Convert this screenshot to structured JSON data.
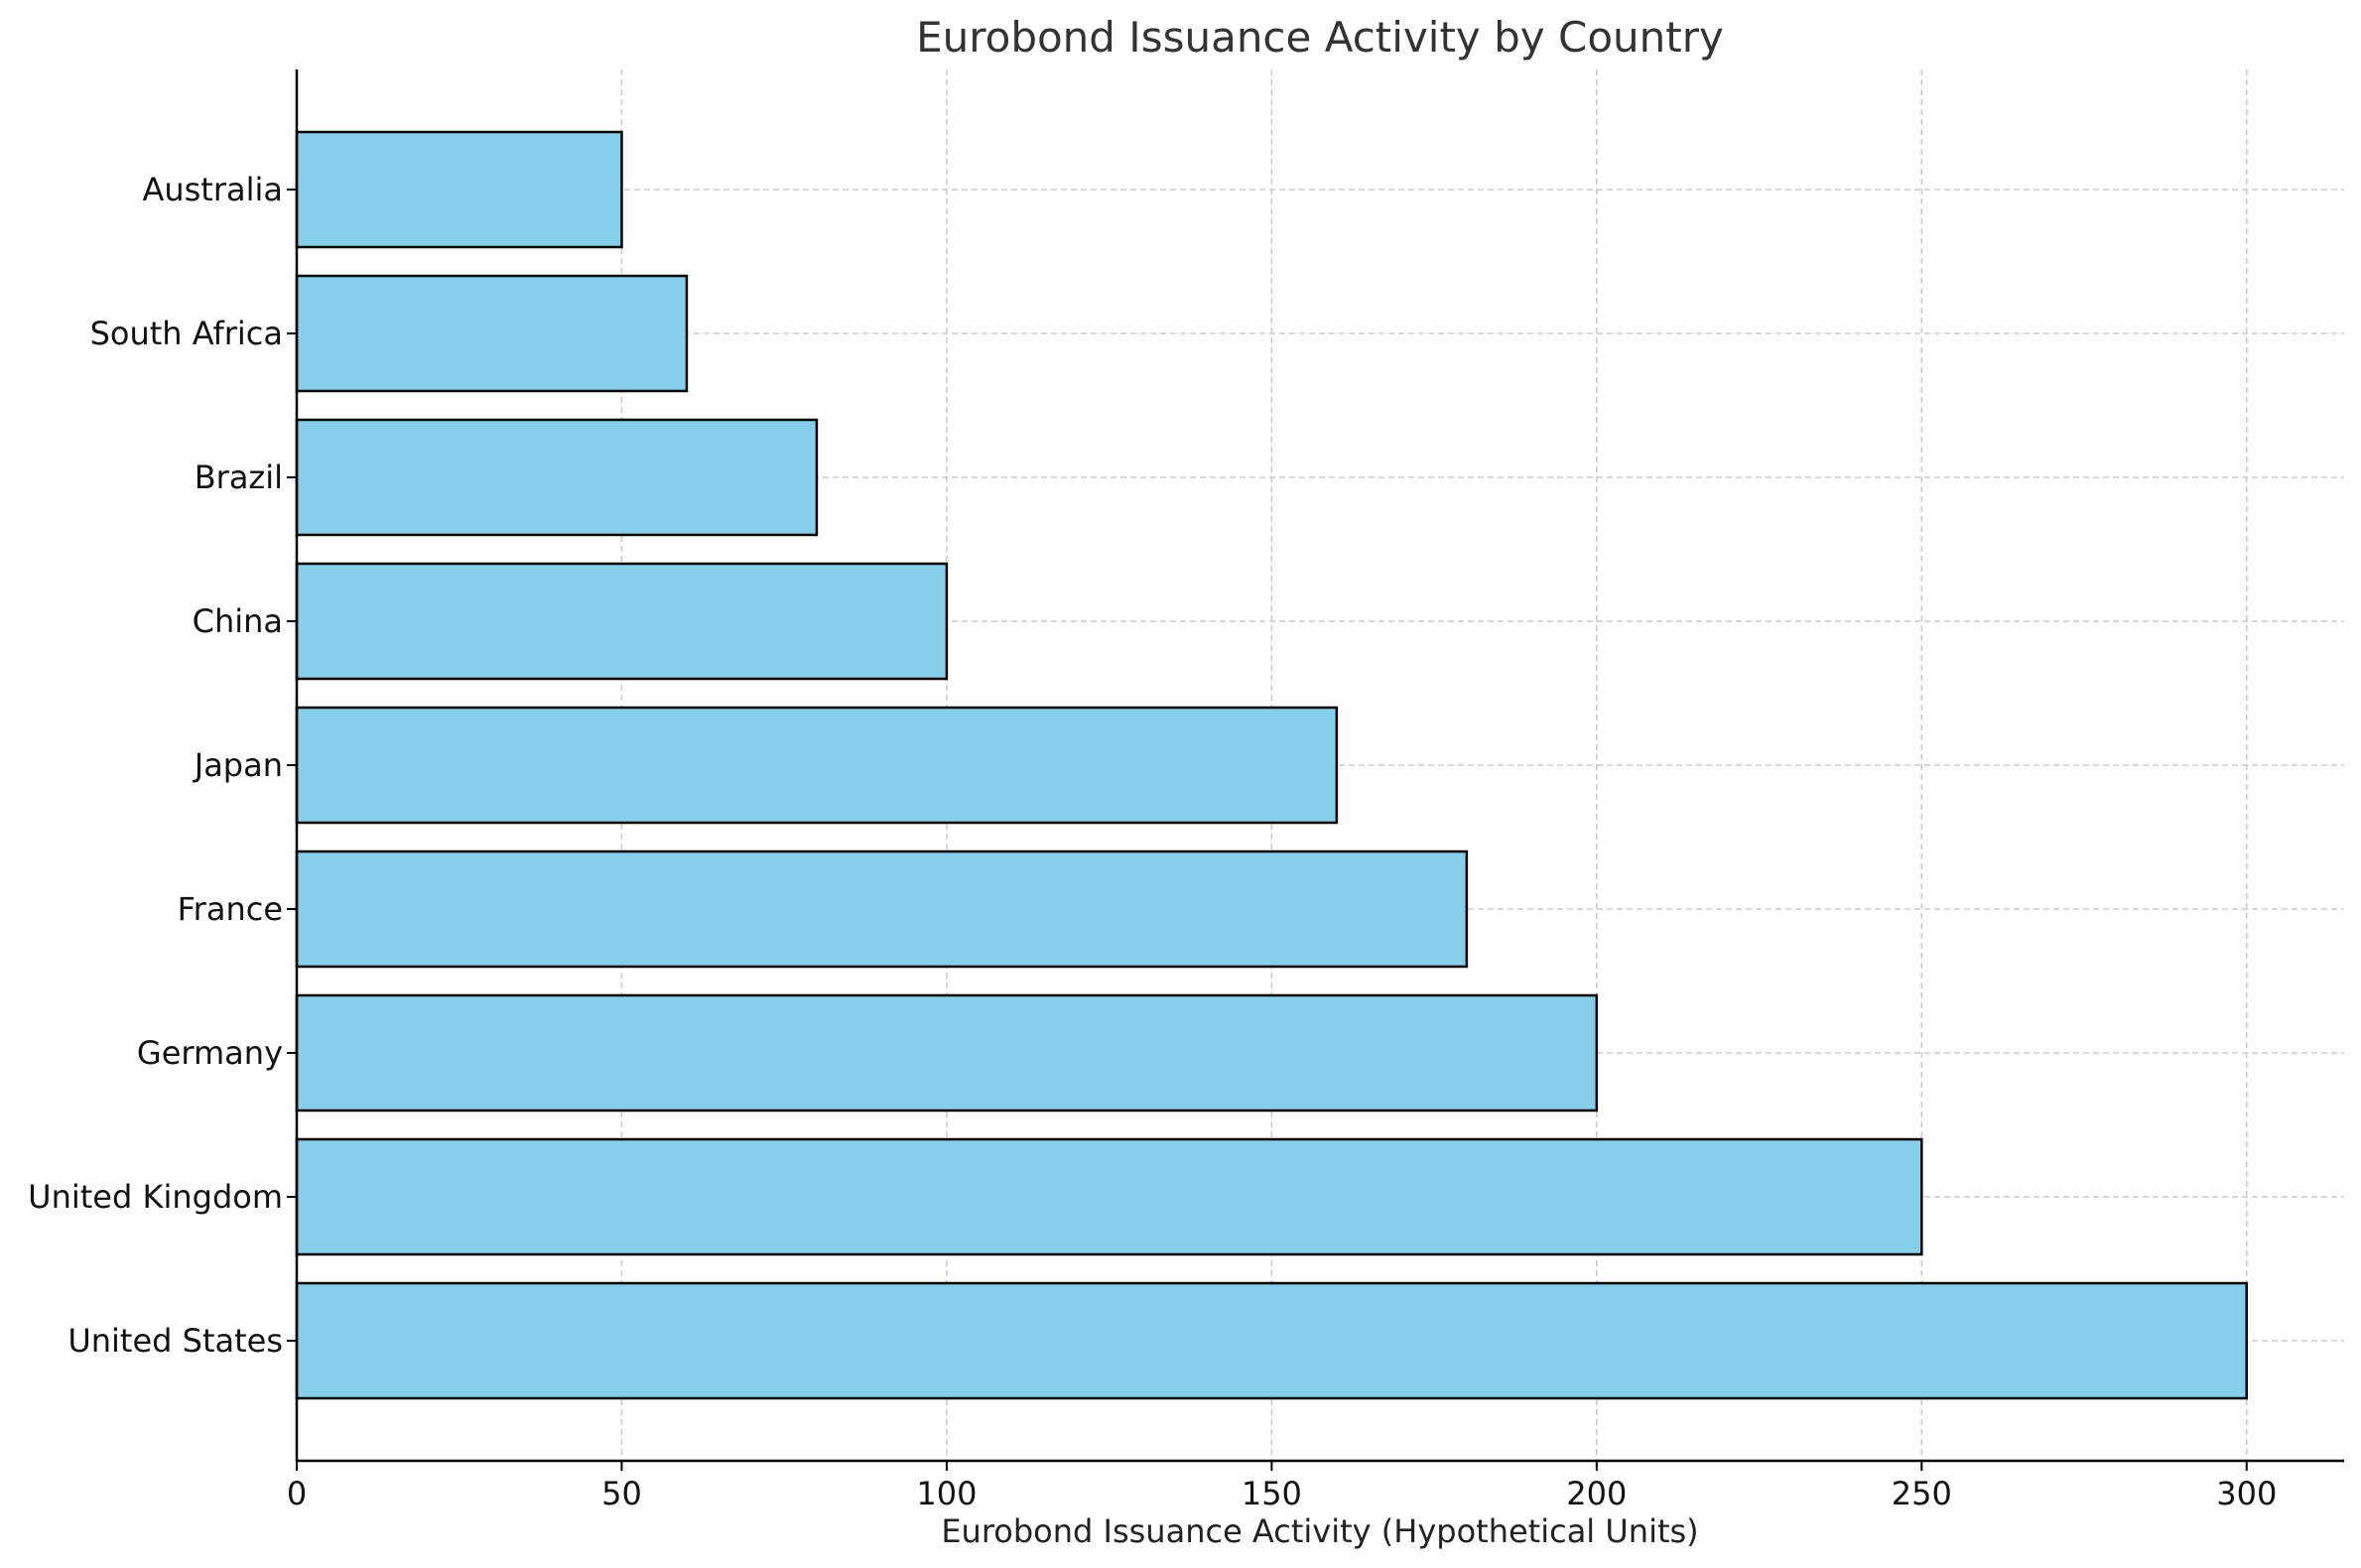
{
  "chart_data": {
    "type": "bar",
    "orientation": "horizontal",
    "title": "Eurobond Issuance Activity by Country",
    "xlabel": "Eurobond Issuance Activity (Hypothetical Units)",
    "ylabel": "",
    "categories": [
      "United States",
      "United Kingdom",
      "Germany",
      "France",
      "Japan",
      "China",
      "Brazil",
      "South Africa",
      "Australia"
    ],
    "values": [
      300,
      250,
      200,
      180,
      160,
      100,
      80,
      60,
      50
    ],
    "xlim": [
      0,
      315
    ],
    "xticks": [
      0,
      50,
      100,
      150,
      200,
      250,
      300
    ],
    "grid": true,
    "bar_color": "#87CEEB",
    "bar_edge_color": "#000000",
    "grid_color": "#c8c8c8"
  }
}
